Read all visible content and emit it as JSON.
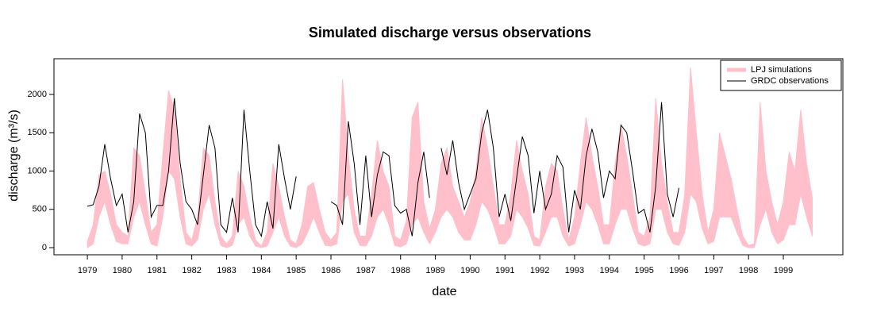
{
  "chart_data": {
    "type": "band_line",
    "title": "Simulated discharge versus observations",
    "x_label": "date",
    "y_label": "discharge (m³/s)",
    "xlim": [
      1978.04,
      2000.71
    ],
    "ylim": [
      -93,
      2466
    ],
    "xticks": [
      1979,
      1980,
      1981,
      1982,
      1983,
      1984,
      1985,
      1986,
      1987,
      1988,
      1989,
      1990,
      1991,
      1992,
      1993,
      1994,
      1995,
      1996,
      1997,
      1998,
      1999
    ],
    "yticks": [
      0,
      500,
      1000,
      1500,
      2000
    ],
    "legend": "top-right",
    "x": [
      1979,
      1979.167,
      1979.333,
      1979.5,
      1979.667,
      1979.833,
      1980,
      1980.167,
      1980.333,
      1980.5,
      1980.667,
      1980.833,
      1981,
      1981.167,
      1981.333,
      1981.5,
      1981.667,
      1981.833,
      1982,
      1982.167,
      1982.333,
      1982.5,
      1982.667,
      1982.833,
      1983,
      1983.167,
      1983.333,
      1983.5,
      1983.667,
      1983.833,
      1984,
      1984.167,
      1984.333,
      1984.5,
      1984.667,
      1984.833,
      1985,
      1985.167,
      1985.333,
      1985.5,
      1985.667,
      1985.833,
      1986,
      1986.167,
      1986.333,
      1986.5,
      1986.667,
      1986.833,
      1987,
      1987.167,
      1987.333,
      1987.5,
      1987.667,
      1987.833,
      1988,
      1988.167,
      1988.333,
      1988.5,
      1988.667,
      1988.833,
      1989,
      1989.167,
      1989.333,
      1989.5,
      1989.667,
      1989.833,
      1990,
      1990.167,
      1990.333,
      1990.5,
      1990.667,
      1990.833,
      1991,
      1991.167,
      1991.333,
      1991.5,
      1991.667,
      1991.833,
      1992,
      1992.167,
      1992.333,
      1992.5,
      1992.667,
      1992.833,
      1993,
      1993.167,
      1993.333,
      1993.5,
      1993.667,
      1993.833,
      1994,
      1994.167,
      1994.333,
      1994.5,
      1994.667,
      1994.833,
      1995,
      1995.167,
      1995.333,
      1995.5,
      1995.667,
      1995.833,
      1996,
      1996.167,
      1996.333,
      1996.5,
      1996.667,
      1996.833,
      1997,
      1997.167,
      1997.333,
      1997.5,
      1997.667,
      1997.833,
      1998,
      1998.167,
      1998.333,
      1998.5,
      1998.667,
      1998.833,
      1999,
      1999.167,
      1999.333,
      1999.5,
      1999.667,
      1999.833
    ],
    "series": [
      {
        "name": "LPJ simulations",
        "color": "#ffc0cb",
        "upper": [
          80,
          300,
          950,
          1000,
          700,
          300,
          200,
          150,
          1300,
          1200,
          700,
          200,
          300,
          1200,
          2050,
          1800,
          900,
          200,
          100,
          400,
          1300,
          1200,
          600,
          150,
          50,
          150,
          1000,
          800,
          400,
          100,
          20,
          200,
          1100,
          800,
          400,
          100,
          50,
          300,
          800,
          850,
          500,
          200,
          100,
          200,
          2200,
          1200,
          500,
          150,
          150,
          700,
          1400,
          1000,
          800,
          150,
          100,
          350,
          1700,
          1900,
          600,
          250,
          500,
          1100,
          1300,
          800,
          600,
          400,
          600,
          1000,
          1700,
          1300,
          800,
          300,
          300,
          700,
          1400,
          1000,
          700,
          150,
          100,
          800,
          1100,
          1000,
          500,
          100,
          400,
          1100,
          1700,
          1200,
          800,
          300,
          300,
          1100,
          1600,
          1200,
          700,
          200,
          150,
          400,
          1950,
          1100,
          600,
          200,
          200,
          700,
          2350,
          1500,
          700,
          200,
          500,
          1500,
          1200,
          900,
          500,
          150,
          30,
          50,
          1900,
          1000,
          600,
          300,
          600,
          1250,
          1000,
          1800,
          1100,
          650
        ],
        "lower": [
          0,
          50,
          400,
          600,
          300,
          80,
          50,
          50,
          400,
          600,
          300,
          50,
          20,
          400,
          1000,
          900,
          400,
          50,
          20,
          100,
          500,
          700,
          300,
          30,
          0,
          30,
          300,
          400,
          150,
          20,
          0,
          20,
          200,
          400,
          150,
          20,
          0,
          50,
          200,
          400,
          200,
          30,
          20,
          50,
          600,
          700,
          200,
          30,
          20,
          150,
          400,
          500,
          300,
          30,
          10,
          50,
          300,
          400,
          200,
          50,
          200,
          400,
          500,
          400,
          200,
          100,
          100,
          300,
          600,
          500,
          300,
          50,
          50,
          150,
          500,
          400,
          250,
          30,
          20,
          200,
          400,
          400,
          150,
          20,
          50,
          300,
          600,
          500,
          300,
          50,
          50,
          300,
          500,
          500,
          250,
          50,
          20,
          50,
          500,
          500,
          200,
          50,
          30,
          200,
          700,
          600,
          250,
          50,
          80,
          400,
          400,
          400,
          200,
          30,
          0,
          0,
          300,
          500,
          200,
          50,
          100,
          300,
          300,
          700,
          400,
          150
        ]
      },
      {
        "name": "GRDC observations",
        "color": "#000000",
        "values": [
          540,
          560,
          800,
          1350,
          900,
          550,
          700,
          200,
          600,
          1750,
          1500,
          400,
          550,
          550,
          1000,
          1950,
          1100,
          600,
          500,
          300,
          950,
          1600,
          1300,
          300,
          200,
          650,
          200,
          1800,
          1000,
          300,
          150,
          600,
          250,
          1350,
          900,
          500,
          930,
          null,
          null,
          null,
          null,
          null,
          600,
          550,
          300,
          1650,
          1100,
          300,
          1200,
          400,
          950,
          1250,
          1200,
          550,
          450,
          500,
          150,
          850,
          1250,
          650,
          null,
          1300,
          950,
          1400,
          850,
          500,
          700,
          900,
          1500,
          1800,
          1300,
          400,
          700,
          350,
          900,
          1450,
          1200,
          450,
          1000,
          500,
          700,
          1200,
          1050,
          200,
          750,
          500,
          1200,
          1550,
          1250,
          650,
          1000,
          900,
          1600,
          1500,
          1000,
          450,
          500,
          200,
          800,
          1900,
          700,
          400,
          780,
          null,
          null,
          null,
          null,
          null,
          null,
          null,
          null,
          null,
          null,
          null,
          null,
          null,
          null,
          null,
          null,
          null,
          null,
          null,
          null,
          null,
          null,
          null
        ]
      }
    ]
  }
}
